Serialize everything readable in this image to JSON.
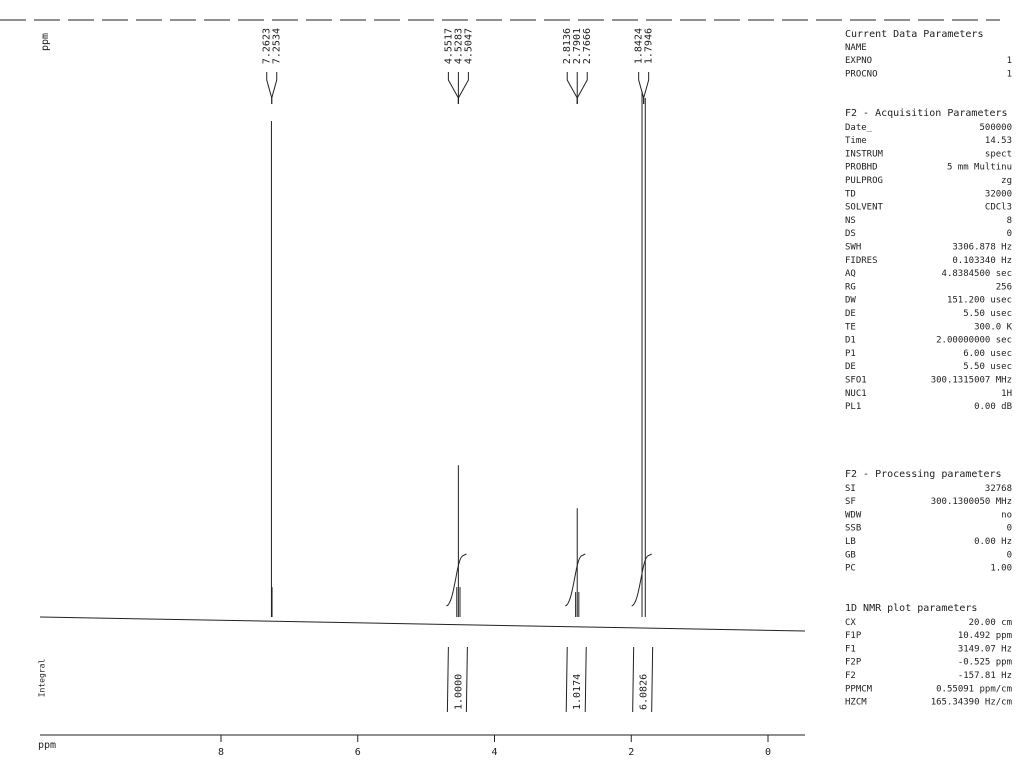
{
  "chart_data": {
    "type": "nmr",
    "x_label": "ppm",
    "y_label": "ppm",
    "integral_label": "Integral",
    "xlim": [
      10.492,
      -0.525
    ],
    "ylim": [
      0,
      530
    ],
    "xticks": [
      8,
      6,
      4,
      2,
      0
    ],
    "color": "#222222",
    "peaks": {
      "x": [
        7.2623,
        7.2534,
        4.5517,
        4.5283,
        4.5047,
        2.8136,
        2.7901,
        2.7666,
        1.8424,
        1.7946
      ],
      "values": [
        497,
        30,
        30,
        152,
        30,
        25,
        109,
        25,
        527,
        520
      ]
    },
    "integrals": {
      "values": [
        1,
        1.0174,
        6.0826
      ],
      "value_labels": [
        "1.0000",
        "1.0174",
        "6.0826"
      ]
    }
  },
  "parameters": [
    {
      "title": "Current Data Parameters",
      "rows": [
        [
          "NAME"
        ],
        [
          "EXPNO",
          "1"
        ],
        [
          "PROCNO",
          "1"
        ]
      ]
    },
    {
      "title": "F2 - Acquisition Parameters",
      "rows": [
        [
          "Date_",
          "500000"
        ],
        [
          "Time",
          "14.53"
        ],
        [
          "INSTRUM",
          "spect"
        ],
        [
          "PROBHD",
          "5 mm Multinu"
        ],
        [
          "PULPROG",
          "zg"
        ],
        [
          "TD",
          "32000"
        ],
        [
          "SOLVENT",
          "CDCl3"
        ],
        [
          "NS",
          "8"
        ],
        [
          "DS",
          "0"
        ],
        [
          "SWH",
          "3306.878 Hz"
        ],
        [
          "FIDRES",
          "0.103340 Hz"
        ],
        [
          "AQ",
          "4.8384500 sec"
        ],
        [
          "RG",
          "256"
        ],
        [
          "DW",
          "151.200 usec"
        ],
        [
          "DE",
          "5.50 usec"
        ],
        [
          "TE",
          "300.0 K"
        ],
        [
          "D1",
          "2.00000000 sec"
        ],
        [
          "P1",
          "6.00 usec"
        ],
        [
          "DE",
          "5.50 usec"
        ],
        [
          "SFO1",
          "300.1315007 MHz"
        ],
        [
          "NUC1",
          "1H"
        ],
        [
          "PL1",
          "0.00 dB"
        ]
      ]
    },
    {
      "title": "F2 - Processing parameters",
      "rows": [
        [
          "SI",
          "32768"
        ],
        [
          "SF",
          "300.1300050 MHz"
        ],
        [
          "WDW",
          "no"
        ],
        [
          "SSB",
          "0"
        ],
        [
          "LB",
          "0.00 Hz"
        ],
        [
          "GB",
          "0"
        ],
        [
          "PC",
          "1.00"
        ]
      ]
    },
    {
      "title": "1D NMR plot parameters",
      "rows": [
        [
          "CX",
          "20.00 cm"
        ],
        [
          "F1P",
          "10.492 ppm"
        ],
        [
          "F1",
          "3149.07 Hz"
        ],
        [
          "F2P",
          "-0.525 ppm"
        ],
        [
          "F2",
          "-157.81 Hz"
        ],
        [
          "PPMCM",
          "0.55091 ppm/cm"
        ],
        [
          "HZCM",
          "165.34390 Hz/cm"
        ]
      ]
    }
  ]
}
